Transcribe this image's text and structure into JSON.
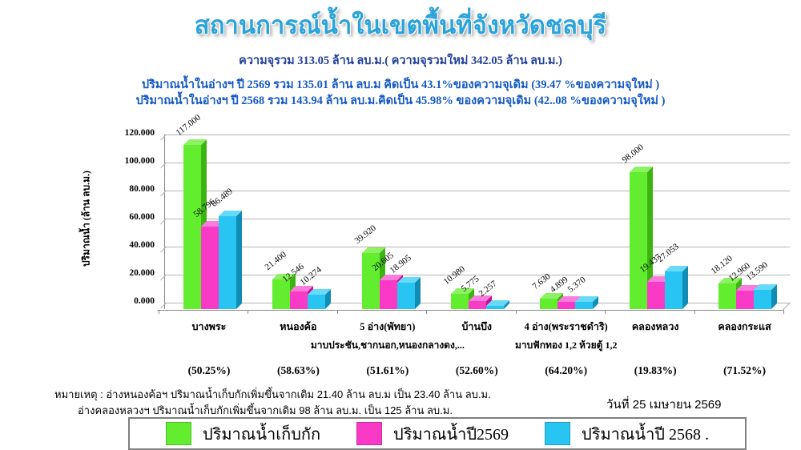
{
  "title": "สถานการณ์น้ำในเขตพื้นที่จังหวัดชลบุรี",
  "subtitle": {
    "capacity_line": "ความจุรวม  313.05 ล้าน ลบ.ม.( ความจุรวมใหม่ 342.05 ล้าน ลบ.ม.)",
    "year_2569_line": "ปริมาณน้ำในอ่างฯ ปี 2569 รวม 135.01 ล้าน ลบ.ม คิดเป็น 43.1%ของความจุเดิม (39.47 %ของความจุใหม่ )",
    "year_2568_line": "ปริมาณน้ำในอ่างฯ ปี 2568 รวม 143.94 ล้าน ลบ.ม.คิดเป็น 45.98% ของความจุเดิม (42..08 %ของความจุใหม่ )"
  },
  "chart_data": {
    "type": "bar",
    "title": "",
    "xlabel": "",
    "ylabel": "ปริมาณน้ำ (ล้าน ลบ.ม.)",
    "ylim": [
      0,
      120
    ],
    "ytick_step": 20,
    "ytick_labels": [
      "120.000",
      "100.000",
      "80.000",
      "60.000",
      "40.000",
      "20.000",
      "0.000"
    ],
    "grid": true,
    "style": "3d-clustered-bar",
    "legend_position": "bottom",
    "categories": [
      "บางพระ",
      "หนองค้อ",
      "5 อ่าง(พัทยา)",
      "บ้านบึง",
      "4 อ่าง(พระราชดำริ)",
      "คลองหลวง",
      "คลองกระแส"
    ],
    "sub_labels": [
      "",
      "",
      "มาบประชัน,ชากนอก,หนองกลางดง,...",
      "",
      "มาบฟักทอง 1,2 ห้วยตู้ 1,2",
      "",
      ""
    ],
    "percentages": [
      "(50.25%)",
      "(58.63%)",
      "(51.61%)",
      "(52.60%)",
      "(64.20%)",
      "(19.83%)",
      "(71.52%)"
    ],
    "series": [
      {
        "name": "ปริมาณน้ำเก็บกัก",
        "color": "#63ed2f",
        "side_color": "#3db412",
        "top_color": "#8cf163",
        "values": [
          117.0,
          21.4,
          39.92,
          10.98,
          7.63,
          98.0,
          18.12
        ]
      },
      {
        "name": "ปริมาณน้ำปี2569",
        "color": "#f83ac6",
        "side_color": "#c40d97",
        "top_color": "#fb7cdb",
        "values": [
          58.796,
          12.546,
          20.605,
          5.775,
          4.899,
          19.437,
          12.96
        ]
      },
      {
        "name": "ปริมาณน้ำปี 2568 .",
        "color": "#29c5f2",
        "side_color": "#118cb5",
        "top_color": "#67daf7",
        "values": [
          66.489,
          10.274,
          18.905,
          2.257,
          5.37,
          27.053,
          13.59
        ]
      }
    ]
  },
  "notes": {
    "line1": "หมายเหตุ :  อ่างหนองค้อฯ ปริมาณน้ำเก็บกักเพิ่มขึ้นจากเดิม 21.40 ล้าน ลบ.ม เป็น 23.40 ล้าน ลบ.ม.",
    "line2": "อ่างคลองหลวงฯ ปริมาณน้ำเก็บกักเพิ่มขึ้นจากเดิม 98 ล้าน ลบ.ม. เป็น 125 ล้าน ลบ.ม."
  },
  "date_label": "วันที่ 25 เมษายน 2569",
  "legend": [
    {
      "label": "ปริมาณน้ำเก็บกัก",
      "color": "#63ed2f"
    },
    {
      "label": "ปริมาณน้ำปี2569",
      "color": "#f83ac6"
    },
    {
      "label": "ปริมาณน้ำปี 2568 .",
      "color": "#29c5f2"
    }
  ]
}
